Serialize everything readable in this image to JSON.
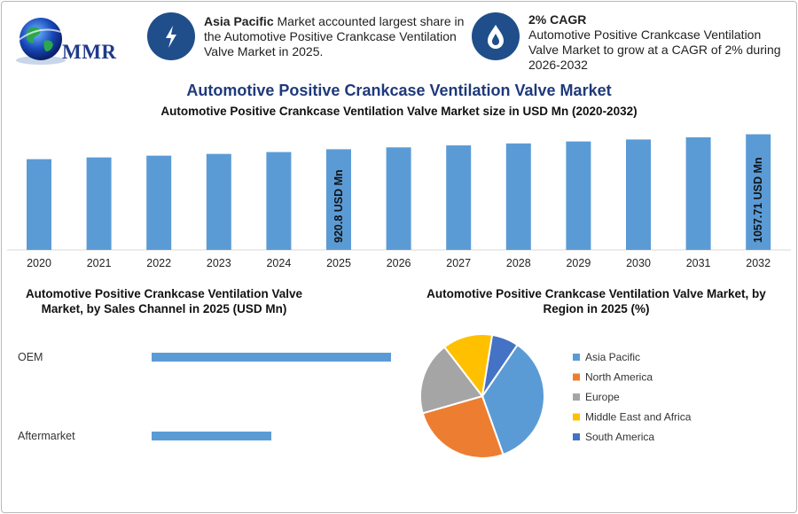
{
  "header": {
    "logo_text": "MMR",
    "info1": {
      "bold": "Asia Pacific",
      "text": " Market accounted largest share in the Automotive Positive Crankcase Ventilation Valve Market in 2025.",
      "icon": "lightning-icon"
    },
    "info2": {
      "bold": "2% CAGR",
      "text": "Automotive Positive Crankcase Ventilation Valve Market to grow at a CAGR of 2% during 2026-2032",
      "icon": "flame-drop-icon"
    }
  },
  "main_title": "Automotive Positive Crankcase Ventilation Valve Market",
  "chart_data": [
    {
      "type": "bar",
      "title": "Automotive Positive Crankcase Ventilation Valve Market size in USD Mn (2020-2032)",
      "categories": [
        "2020",
        "2021",
        "2022",
        "2023",
        "2024",
        "2025",
        "2026",
        "2027",
        "2028",
        "2029",
        "2030",
        "2031",
        "2032"
      ],
      "values": [
        830,
        846,
        862,
        878,
        895,
        920.8,
        938,
        956,
        974,
        992,
        1010,
        1030,
        1057.71
      ],
      "data_labels": [
        {
          "category": "2025",
          "text": "920.8 USD Mn"
        },
        {
          "category": "2032",
          "text": "1057.71 USD Mn"
        }
      ],
      "ylim": [
        0,
        1070
      ],
      "color": "#5b9bd5"
    },
    {
      "type": "bar",
      "orientation": "horizontal",
      "title": "Automotive Positive Crankcase Ventilation Valve Market, by Sales Channel in 2025 (USD Mn)",
      "categories": [
        "OEM",
        "Aftermarket"
      ],
      "values": [
        620,
        310
      ],
      "xlim": [
        0,
        620
      ],
      "color": "#5b9bd5"
    },
    {
      "type": "pie",
      "title": "Automotive Positive Crankcase Ventilation Valve Market, by Region in 2025 (%)",
      "labels": [
        "Asia Pacific",
        "North America",
        "Europe",
        "Middle East and Africa",
        "South America"
      ],
      "values": [
        35,
        26,
        19,
        13,
        7
      ],
      "colors": [
        "#5b9bd5",
        "#ed7d31",
        "#a5a5a5",
        "#ffc000",
        "#4472c4"
      ],
      "legend": "right"
    }
  ]
}
